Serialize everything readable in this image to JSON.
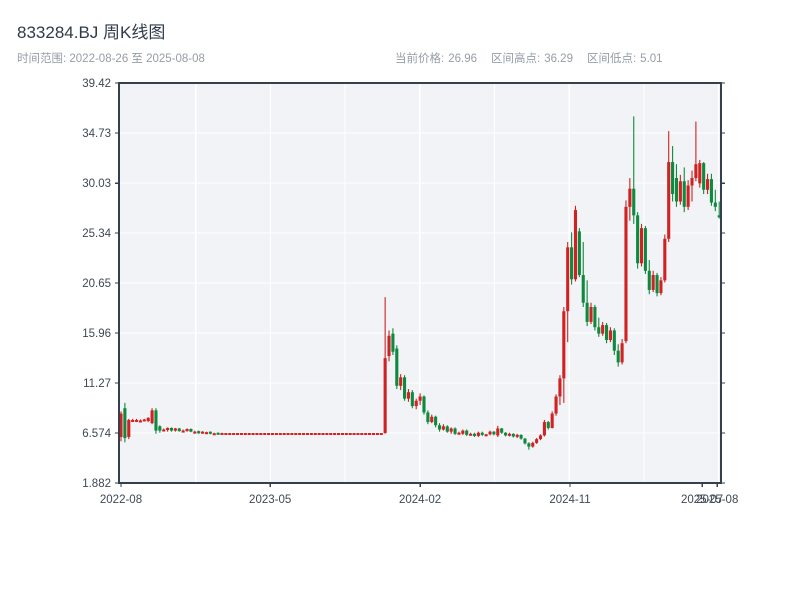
{
  "header": {
    "title": "833284.BJ 周K线图",
    "subtitle": "时间范围: 2022-08-26 至 2025-08-08"
  },
  "stats": {
    "price_label": "当前价格:",
    "price_value": "26.96",
    "high_label": "区间高点:",
    "high_value": "36.29",
    "low_label": "区间低点:",
    "low_value": "5.01"
  },
  "chart_data": {
    "type": "candlestick",
    "title": "833284.BJ 周K线图",
    "frequency": "weekly",
    "start_date": "2022-08-26",
    "end_date": "2025-08-08",
    "ylim": [
      1.882,
      39.42
    ],
    "grid": true,
    "y_ticks": [
      "39.42",
      "34.73",
      "30.03",
      "25.34",
      "20.65",
      "15.96",
      "11.27",
      "6.574",
      "1.882"
    ],
    "y_tick_values": [
      39.42,
      34.73,
      30.03,
      25.34,
      20.65,
      15.96,
      11.27,
      6.574,
      1.882
    ],
    "x_ticks": [
      {
        "label": "2022-08",
        "week": 0
      },
      {
        "label": "2023-05",
        "week": 38.4
      },
      {
        "label": "2024-02",
        "week": 77
      },
      {
        "label": "2024-11",
        "week": 115.6
      },
      {
        "label": "2025-07",
        "week": 149.6
      },
      {
        "label": "2025-08",
        "week": 153.5
      }
    ],
    "up_color": "#d02222",
    "down_color": "#0d8a3e",
    "candles_format": [
      "open",
      "high",
      "low",
      "close"
    ],
    "candles": [
      [
        6.2,
        8.6,
        5.8,
        8.4
      ],
      [
        8.9,
        9.4,
        5.7,
        6.1
      ],
      [
        6.2,
        7.9,
        6.0,
        7.8
      ],
      [
        7.8,
        7.9,
        7.6,
        7.8
      ],
      [
        7.8,
        7.9,
        7.6,
        7.8
      ],
      [
        7.75,
        7.85,
        7.6,
        7.75
      ],
      [
        7.8,
        7.9,
        7.65,
        7.85
      ],
      [
        7.7,
        8.05,
        7.6,
        8.0
      ],
      [
        7.5,
        8.9,
        7.4,
        8.7
      ],
      [
        8.7,
        8.9,
        6.5,
        6.8
      ],
      [
        7.2,
        7.3,
        6.6,
        6.8
      ],
      [
        6.9,
        7.0,
        6.8,
        6.9
      ],
      [
        6.85,
        7.1,
        6.7,
        7.05
      ],
      [
        7.05,
        7.1,
        6.7,
        6.8
      ],
      [
        6.8,
        7.05,
        6.7,
        7.0
      ],
      [
        7.0,
        7.05,
        6.7,
        6.75
      ],
      [
        6.8,
        6.9,
        6.7,
        6.8
      ],
      [
        6.75,
        7.0,
        6.7,
        6.95
      ],
      [
        6.95,
        7.0,
        6.65,
        6.7
      ],
      [
        6.7,
        6.8,
        6.6,
        6.7
      ],
      [
        6.75,
        6.8,
        6.5,
        6.55
      ],
      [
        6.55,
        6.75,
        6.5,
        6.7
      ],
      [
        6.65,
        6.7,
        6.6,
        6.65
      ],
      [
        6.7,
        6.72,
        6.45,
        6.5
      ],
      [
        6.55,
        6.6,
        6.5,
        6.55
      ],
      [
        6.6,
        6.62,
        6.4,
        6.45
      ],
      [
        6.45,
        6.6,
        6.4,
        6.574
      ],
      [
        6.574,
        6.574,
        6.574,
        6.574
      ],
      [
        6.574,
        6.574,
        6.574,
        6.574
      ],
      [
        6.574,
        6.574,
        6.574,
        6.574
      ],
      [
        6.574,
        6.574,
        6.574,
        6.574
      ],
      [
        6.574,
        6.574,
        6.574,
        6.574
      ],
      [
        6.574,
        6.574,
        6.574,
        6.574
      ],
      [
        6.574,
        6.574,
        6.574,
        6.574
      ],
      [
        6.574,
        6.574,
        6.574,
        6.574
      ],
      [
        6.574,
        6.574,
        6.574,
        6.574
      ],
      [
        6.574,
        6.574,
        6.574,
        6.574
      ],
      [
        6.574,
        6.574,
        6.574,
        6.574
      ],
      [
        6.574,
        6.574,
        6.574,
        6.574
      ],
      [
        6.574,
        6.574,
        6.574,
        6.574
      ],
      [
        6.574,
        6.574,
        6.574,
        6.574
      ],
      [
        6.574,
        6.574,
        6.574,
        6.574
      ],
      [
        6.574,
        6.574,
        6.574,
        6.574
      ],
      [
        6.574,
        6.574,
        6.574,
        6.574
      ],
      [
        6.574,
        6.574,
        6.574,
        6.574
      ],
      [
        6.574,
        6.574,
        6.574,
        6.574
      ],
      [
        6.574,
        6.574,
        6.574,
        6.574
      ],
      [
        6.574,
        6.574,
        6.574,
        6.574
      ],
      [
        6.574,
        6.574,
        6.574,
        6.574
      ],
      [
        6.574,
        6.574,
        6.574,
        6.574
      ],
      [
        6.574,
        6.574,
        6.574,
        6.574
      ],
      [
        6.574,
        6.574,
        6.574,
        6.574
      ],
      [
        6.574,
        6.574,
        6.574,
        6.574
      ],
      [
        6.574,
        6.574,
        6.574,
        6.574
      ],
      [
        6.574,
        6.574,
        6.574,
        6.574
      ],
      [
        6.574,
        6.574,
        6.574,
        6.574
      ],
      [
        6.574,
        6.574,
        6.574,
        6.574
      ],
      [
        6.574,
        6.574,
        6.574,
        6.574
      ],
      [
        6.574,
        6.574,
        6.574,
        6.574
      ],
      [
        6.574,
        6.574,
        6.574,
        6.574
      ],
      [
        6.574,
        6.574,
        6.574,
        6.574
      ],
      [
        6.574,
        6.574,
        6.574,
        6.574
      ],
      [
        6.574,
        6.574,
        6.574,
        6.574
      ],
      [
        6.574,
        6.574,
        6.574,
        6.574
      ],
      [
        6.574,
        6.574,
        6.574,
        6.574
      ],
      [
        6.574,
        6.574,
        6.574,
        6.574
      ],
      [
        6.574,
        6.574,
        6.574,
        6.574
      ],
      [
        6.574,
        6.574,
        6.574,
        6.574
      ],
      [
        6.574,
        19.32,
        6.5,
        13.6
      ],
      [
        13.8,
        16.2,
        13.3,
        15.7
      ],
      [
        15.9,
        16.4,
        13.9,
        14.2
      ],
      [
        14.5,
        14.8,
        10.7,
        11.0
      ],
      [
        11.0,
        12.1,
        10.6,
        11.8
      ],
      [
        11.8,
        12.0,
        9.6,
        9.8
      ],
      [
        9.8,
        10.7,
        9.5,
        10.4
      ],
      [
        10.4,
        10.6,
        8.9,
        9.1
      ],
      [
        9.1,
        9.8,
        8.8,
        9.6
      ],
      [
        9.6,
        10.3,
        9.2,
        10.0
      ],
      [
        10.0,
        10.1,
        8.3,
        8.5
      ],
      [
        8.5,
        8.7,
        7.4,
        7.6
      ],
      [
        7.6,
        8.3,
        7.5,
        8.1
      ],
      [
        8.1,
        8.2,
        7.1,
        7.3
      ],
      [
        7.3,
        7.5,
        6.7,
        6.9
      ],
      [
        6.9,
        7.4,
        6.8,
        7.2
      ],
      [
        7.2,
        7.3,
        6.6,
        6.7
      ],
      [
        6.7,
        7.1,
        6.5,
        7.0
      ],
      [
        7.0,
        7.1,
        6.4,
        6.5
      ],
      [
        6.6,
        6.7,
        6.5,
        6.6
      ],
      [
        6.5,
        6.9,
        6.4,
        6.8
      ],
      [
        6.8,
        6.9,
        6.3,
        6.4
      ],
      [
        6.5,
        6.6,
        6.4,
        6.5
      ],
      [
        6.5,
        6.6,
        6.2,
        6.3
      ],
      [
        6.3,
        6.7,
        6.2,
        6.6
      ],
      [
        6.6,
        6.7,
        6.3,
        6.4
      ],
      [
        6.45,
        6.5,
        6.4,
        6.45
      ],
      [
        6.45,
        6.8,
        6.35,
        6.7
      ],
      [
        6.7,
        6.75,
        6.35,
        6.45
      ],
      [
        6.35,
        7.25,
        6.2,
        7.0
      ],
      [
        7.0,
        7.05,
        6.5,
        6.6
      ],
      [
        6.6,
        6.65,
        6.25,
        6.35
      ],
      [
        6.35,
        6.6,
        6.25,
        6.5
      ],
      [
        6.5,
        6.55,
        6.15,
        6.25
      ],
      [
        6.25,
        6.5,
        6.1,
        6.4
      ],
      [
        6.4,
        6.45,
        5.95,
        6.05
      ],
      [
        6.05,
        6.1,
        5.5,
        5.6
      ],
      [
        5.6,
        5.7,
        5.01,
        5.3
      ],
      [
        5.3,
        5.75,
        5.2,
        5.65
      ],
      [
        5.65,
        6.1,
        5.55,
        6.0
      ],
      [
        6.0,
        6.45,
        5.9,
        6.35
      ],
      [
        6.35,
        7.8,
        6.25,
        7.6
      ],
      [
        7.6,
        7.7,
        6.9,
        7.05
      ],
      [
        7.05,
        8.6,
        7.0,
        8.4
      ],
      [
        8.4,
        10.2,
        8.2,
        10.0
      ],
      [
        10.0,
        12.0,
        9.2,
        11.7
      ],
      [
        11.7,
        18.4,
        9.4,
        18.0
      ],
      [
        18.0,
        24.5,
        15.1,
        24.0
      ],
      [
        24.0,
        25.4,
        20.5,
        21.0
      ],
      [
        21.0,
        27.9,
        20.8,
        27.5
      ],
      [
        25.5,
        25.8,
        21.2,
        21.4
      ],
      [
        21.4,
        24.5,
        18.4,
        18.8
      ],
      [
        18.8,
        20.9,
        16.6,
        17.0
      ],
      [
        17.0,
        18.8,
        16.8,
        18.4
      ],
      [
        18.4,
        18.6,
        16.2,
        16.5
      ],
      [
        16.5,
        17.4,
        15.6,
        15.9
      ],
      [
        15.9,
        17.0,
        15.7,
        16.7
      ],
      [
        16.7,
        16.9,
        15.0,
        15.3
      ],
      [
        15.3,
        16.5,
        15.1,
        16.2
      ],
      [
        16.2,
        16.4,
        13.9,
        14.3
      ],
      [
        14.3,
        14.9,
        12.8,
        13.2
      ],
      [
        13.2,
        15.4,
        13.0,
        15.0
      ],
      [
        15.2,
        28.4,
        15.0,
        27.8
      ],
      [
        27.8,
        30.5,
        26.5,
        29.5
      ],
      [
        29.5,
        36.29,
        26.2,
        27.0
      ],
      [
        27.0,
        27.3,
        22.0,
        22.5
      ],
      [
        22.5,
        26.2,
        22.2,
        25.8
      ],
      [
        25.8,
        26.0,
        21.5,
        21.8
      ],
      [
        21.8,
        22.8,
        19.6,
        20.0
      ],
      [
        20.0,
        21.8,
        19.8,
        21.4
      ],
      [
        21.4,
        21.6,
        19.4,
        19.7
      ],
      [
        19.7,
        21.2,
        19.5,
        20.9
      ],
      [
        20.9,
        25.2,
        20.7,
        24.8
      ],
      [
        24.8,
        34.9,
        24.5,
        32.0
      ],
      [
        32.0,
        33.5,
        28.3,
        29.0
      ],
      [
        30.5,
        31.8,
        27.8,
        28.3
      ],
      [
        28.3,
        30.8,
        28.0,
        30.2
      ],
      [
        30.2,
        31.5,
        27.3,
        27.8
      ],
      [
        27.8,
        30.3,
        27.5,
        29.8
      ],
      [
        29.8,
        31.2,
        28.3,
        30.5
      ],
      [
        30.5,
        35.8,
        30.2,
        31.8
      ],
      [
        30.0,
        32.2,
        29.6,
        31.9
      ],
      [
        31.9,
        32.0,
        29.0,
        29.4
      ],
      [
        29.4,
        30.9,
        29.0,
        30.4
      ],
      [
        30.4,
        30.9,
        27.9,
        28.2
      ],
      [
        28.2,
        29.4,
        27.4,
        27.8
      ],
      [
        27.0,
        28.3,
        26.7,
        26.96
      ]
    ]
  }
}
